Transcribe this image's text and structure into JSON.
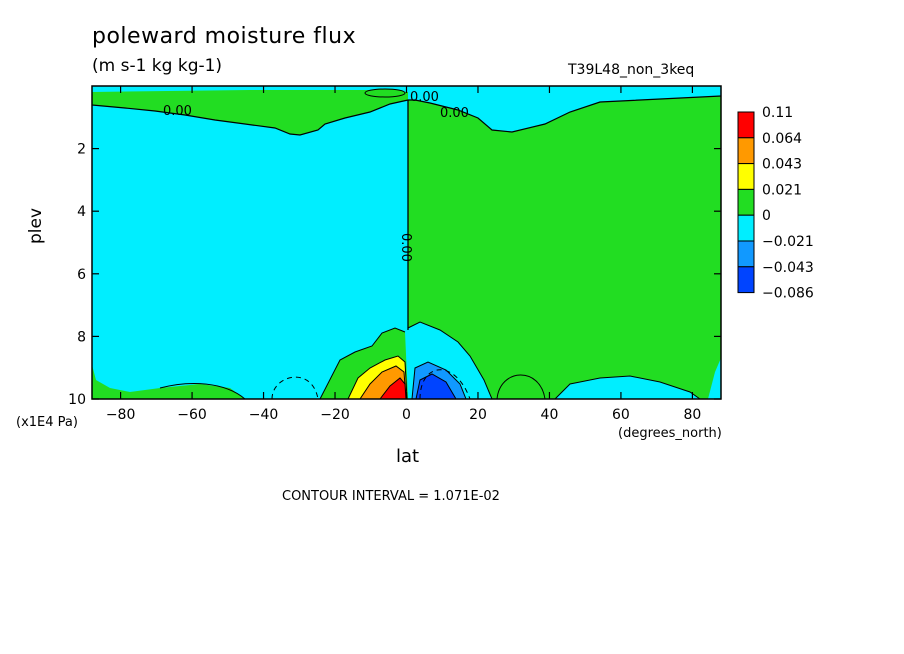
{
  "chart_data": {
    "type": "heatmap",
    "title": "poleward moisture flux",
    "subtitle": "(m s-1 kg kg-1)",
    "dataset_label": "T39L48_non_3keq",
    "xlabel": "lat",
    "x_units": "(degrees_north)",
    "ylabel": "plev",
    "y_units": "(x1E4 Pa)",
    "xlim": [
      -88,
      88
    ],
    "ylim": [
      10,
      0
    ],
    "x_ticks": [
      -80,
      -60,
      -40,
      -20,
      0,
      20,
      40,
      60,
      80
    ],
    "y_ticks": [
      2,
      4,
      6,
      8,
      10
    ],
    "contour_interval_text": "CONTOUR INTERVAL = 1.071E-02",
    "contour_labels": [
      "0.00",
      "0.00",
      "0.00",
      "0.00"
    ],
    "legend": {
      "placement": "right",
      "levels": [
        "0.11",
        "0.064",
        "0.043",
        "0.021",
        "0",
        "−0.021",
        "−0.043",
        "−0.086"
      ],
      "colors": [
        "#ff0000",
        "#ff9900",
        "#ffff00",
        "#22dd22",
        "#00eeff",
        "#1199ff",
        "#0044ff"
      ]
    },
    "regions": [
      {
        "name": "southern-hemisphere-negative",
        "lat": [
          -88,
          0
        ],
        "plev": [
          0.6,
          10
        ],
        "sign": "negative",
        "color": "#00eeff"
      },
      {
        "name": "northern-hemisphere-positive",
        "lat": [
          0,
          88
        ],
        "plev": [
          0.6,
          10
        ],
        "sign": "positive",
        "color": "#22dd22"
      },
      {
        "name": "equatorial-positive-maximum",
        "lat": [
          -12,
          0
        ],
        "plev": [
          8.8,
          10
        ],
        "peak": 0.11,
        "color": "#ff0000"
      },
      {
        "name": "equatorial-negative-minimum",
        "lat": [
          2,
          18
        ],
        "plev": [
          8.6,
          10
        ],
        "peak": -0.086,
        "color": "#0044ff"
      }
    ]
  }
}
